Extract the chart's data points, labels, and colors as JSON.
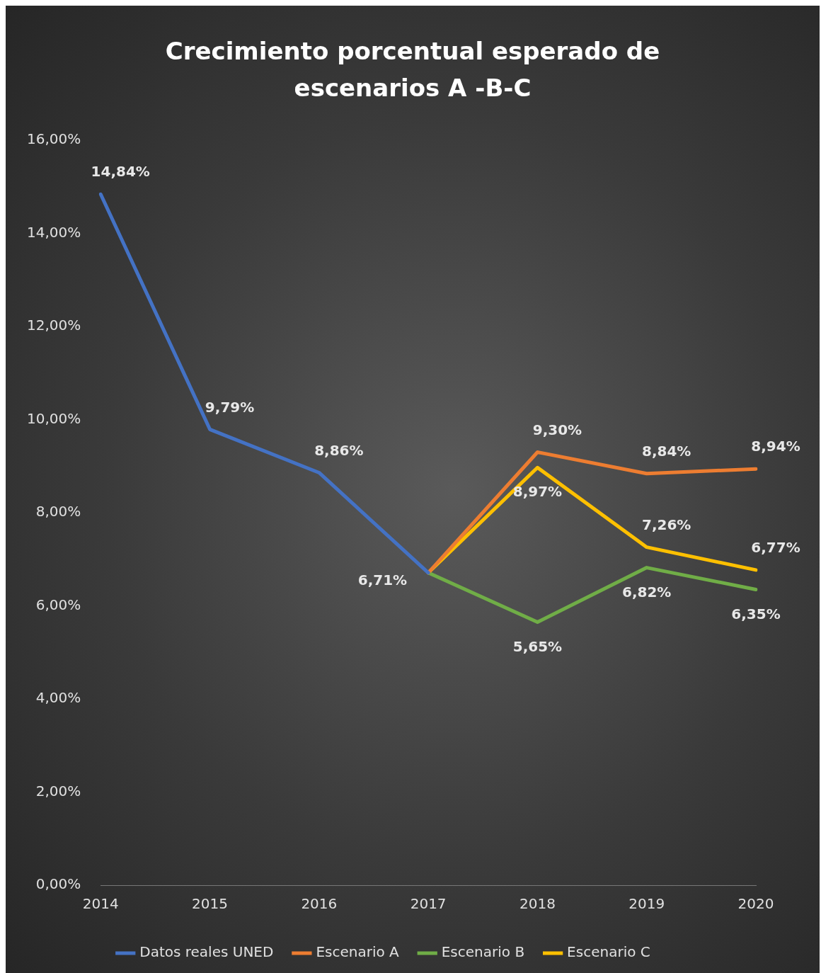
{
  "chart_data": {
    "type": "line",
    "title": "Crecimiento porcentual esperado de escenarios A -B-C",
    "categories": [
      "2014",
      "2015",
      "2016",
      "2017",
      "2018",
      "2019",
      "2020"
    ],
    "series": [
      {
        "name": "Datos reales UNED",
        "color": "#4472c4",
        "values": [
          14.84,
          9.79,
          8.86,
          6.71,
          null,
          null,
          null
        ],
        "value_labels": [
          "14,84%",
          "9,79%",
          "8,86%",
          "6,71%",
          null,
          null,
          null
        ]
      },
      {
        "name": "Escenario A",
        "color": "#ed7d31",
        "values": [
          null,
          null,
          null,
          6.71,
          9.3,
          8.84,
          8.94
        ],
        "value_labels": [
          null,
          null,
          null,
          null,
          "9,30%",
          "8,84%",
          "8,94%"
        ]
      },
      {
        "name": "Escenario B",
        "color": "#70ad47",
        "values": [
          null,
          null,
          null,
          6.71,
          5.65,
          6.82,
          6.35
        ],
        "value_labels": [
          null,
          null,
          null,
          null,
          "5,65%",
          "6,82%",
          "6,35%"
        ]
      },
      {
        "name": "Escenario C",
        "color": "#ffc000",
        "values": [
          null,
          null,
          null,
          6.71,
          8.97,
          7.26,
          6.77
        ],
        "value_labels": [
          null,
          null,
          null,
          null,
          "8,97%",
          "7,26%",
          "6,77%"
        ]
      }
    ],
    "ylim": [
      0,
      16
    ],
    "yticks": [
      {
        "value": 0,
        "label": "0,00%"
      },
      {
        "value": 2,
        "label": "2,00%"
      },
      {
        "value": 4,
        "label": "4,00%"
      },
      {
        "value": 6,
        "label": "6,00%"
      },
      {
        "value": 8,
        "label": "8,00%"
      },
      {
        "value": 10,
        "label": "10,00%"
      },
      {
        "value": 12,
        "label": "12,00%"
      },
      {
        "value": 14,
        "label": "14,00%"
      },
      {
        "value": 16,
        "label": "16,00%"
      }
    ],
    "grid": false,
    "legend": "bottom",
    "marker": "none",
    "line_style": "solid"
  }
}
